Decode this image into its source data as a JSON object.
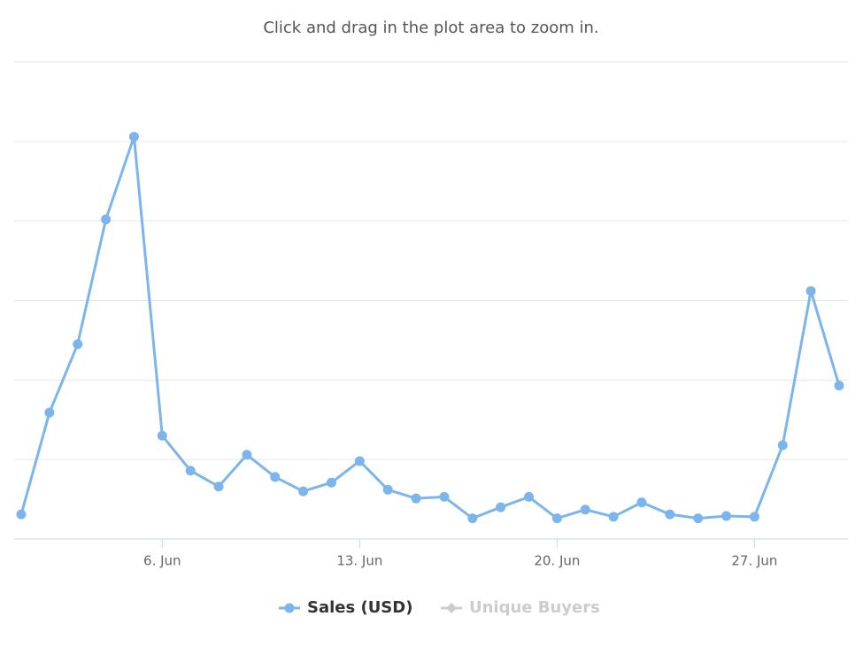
{
  "chart_data": {
    "type": "line",
    "subtitle": "Click and drag in the plot area to zoom in.",
    "categories": [
      null,
      null,
      null,
      null,
      null,
      "6. Jun",
      null,
      null,
      null,
      null,
      null,
      null,
      "13. Jun",
      null,
      null,
      null,
      null,
      null,
      null,
      "20. Jun",
      null,
      null,
      null,
      null,
      null,
      null,
      "27. Jun",
      null,
      null,
      null
    ],
    "series": [
      {
        "name": "Sales (USD)",
        "color": "#7cb5ec",
        "visible": true,
        "values": [
          0.31,
          1.59,
          2.45,
          4.02,
          5.06,
          1.3,
          0.86,
          0.66,
          1.06,
          0.78,
          0.6,
          0.71,
          0.98,
          0.62,
          0.51,
          0.53,
          0.26,
          0.4,
          0.53,
          0.26,
          0.37,
          0.28,
          0.46,
          0.31,
          0.26,
          0.29,
          0.28,
          1.18,
          3.12,
          1.93
        ]
      },
      {
        "name": "Unique Buyers",
        "color": "#cccccc",
        "visible": false
      }
    ],
    "ylim": [
      0,
      6
    ],
    "yticks": [
      0,
      1,
      2,
      3,
      4,
      5,
      6
    ],
    "ytick_labels": false,
    "grid": true,
    "legend": "bottom"
  }
}
